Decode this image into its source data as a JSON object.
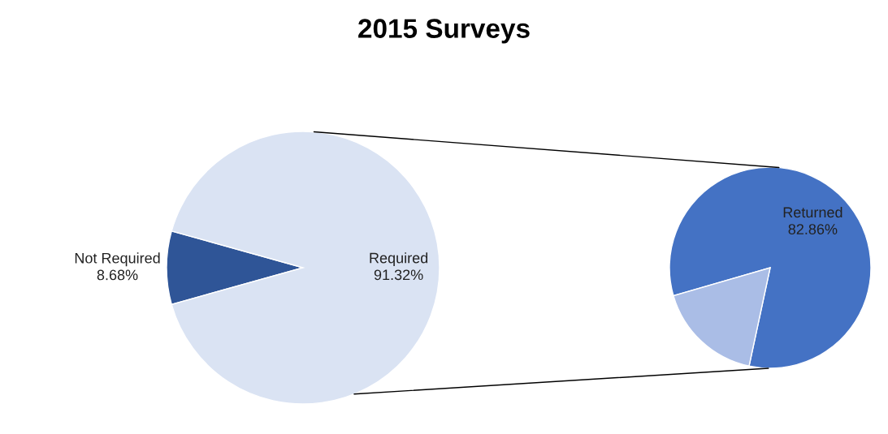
{
  "chart_data": [
    {
      "type": "pie",
      "title": "2015 Surveys",
      "categories": [
        "Not Required",
        "Required"
      ],
      "values": [
        8.68,
        91.32
      ],
      "colors": [
        "#2f5597",
        "#dae3f3"
      ],
      "value_labels": [
        "8.68%",
        "91.32%"
      ]
    },
    {
      "type": "pie",
      "categories": [
        "Returned",
        null
      ],
      "values": [
        82.86,
        17.14
      ],
      "colors": [
        "#4472c4",
        "#aabde6"
      ],
      "value_labels": [
        "82.86%",
        null
      ]
    }
  ]
}
